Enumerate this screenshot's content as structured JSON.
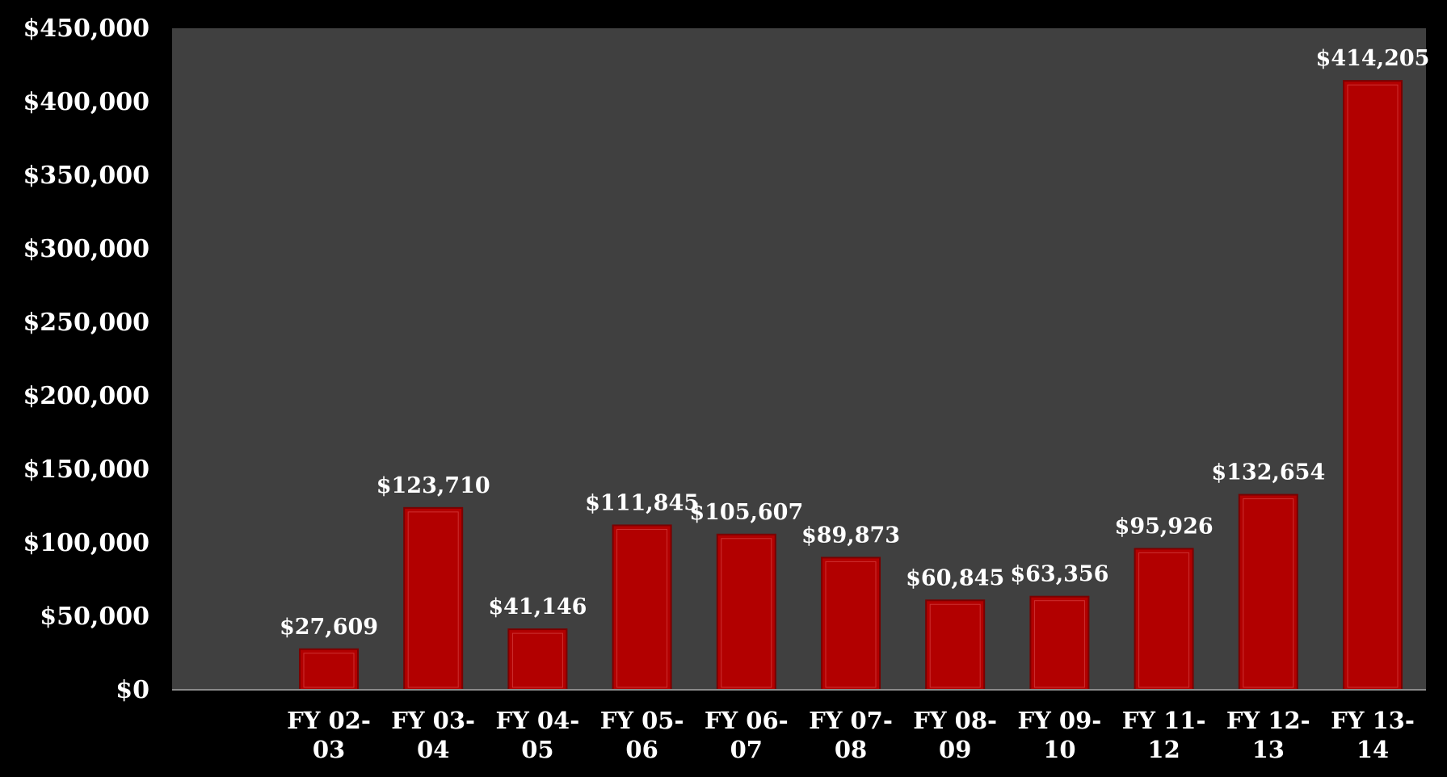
{
  "chart_data": {
    "type": "bar",
    "categories": [
      "FY 02-03",
      "FY 03-04",
      "FY 04-05",
      "FY 05-06",
      "FY 06-07",
      "FY 07-08",
      "FY 08-09",
      "FY 09-10",
      "FY 11-12",
      "FY 12-13",
      "FY 13-14"
    ],
    "values": [
      27609,
      123710,
      41146,
      111845,
      105607,
      89873,
      60845,
      63356,
      95926,
      132654,
      414205
    ],
    "data_labels": [
      "$27,609",
      "$123,710",
      "$41,146",
      "$111,845",
      "$105,607",
      "$89,873",
      "$60,845",
      "$63,356",
      "$95,926",
      "$132,654",
      "$414,205"
    ],
    "y_ticks": [
      0,
      50000,
      100000,
      150000,
      200000,
      250000,
      300000,
      350000,
      400000,
      450000
    ],
    "y_tick_labels": [
      "$0",
      "$50,000",
      "$100,000",
      "$150,000",
      "$200,000",
      "$250,000",
      "$300,000",
      "$350,000",
      "$400,000",
      "$450,000"
    ],
    "ylim": [
      0,
      450000
    ],
    "title": "",
    "xlabel": "",
    "ylabel": "",
    "grid": false,
    "legend": "none",
    "colors": {
      "background": "#000000",
      "plot_area": "#404040",
      "bar_fill": "#b20000",
      "bar_border": "#7a0000",
      "bar_inner_line": "#e05050",
      "text": "#ffffff"
    }
  }
}
